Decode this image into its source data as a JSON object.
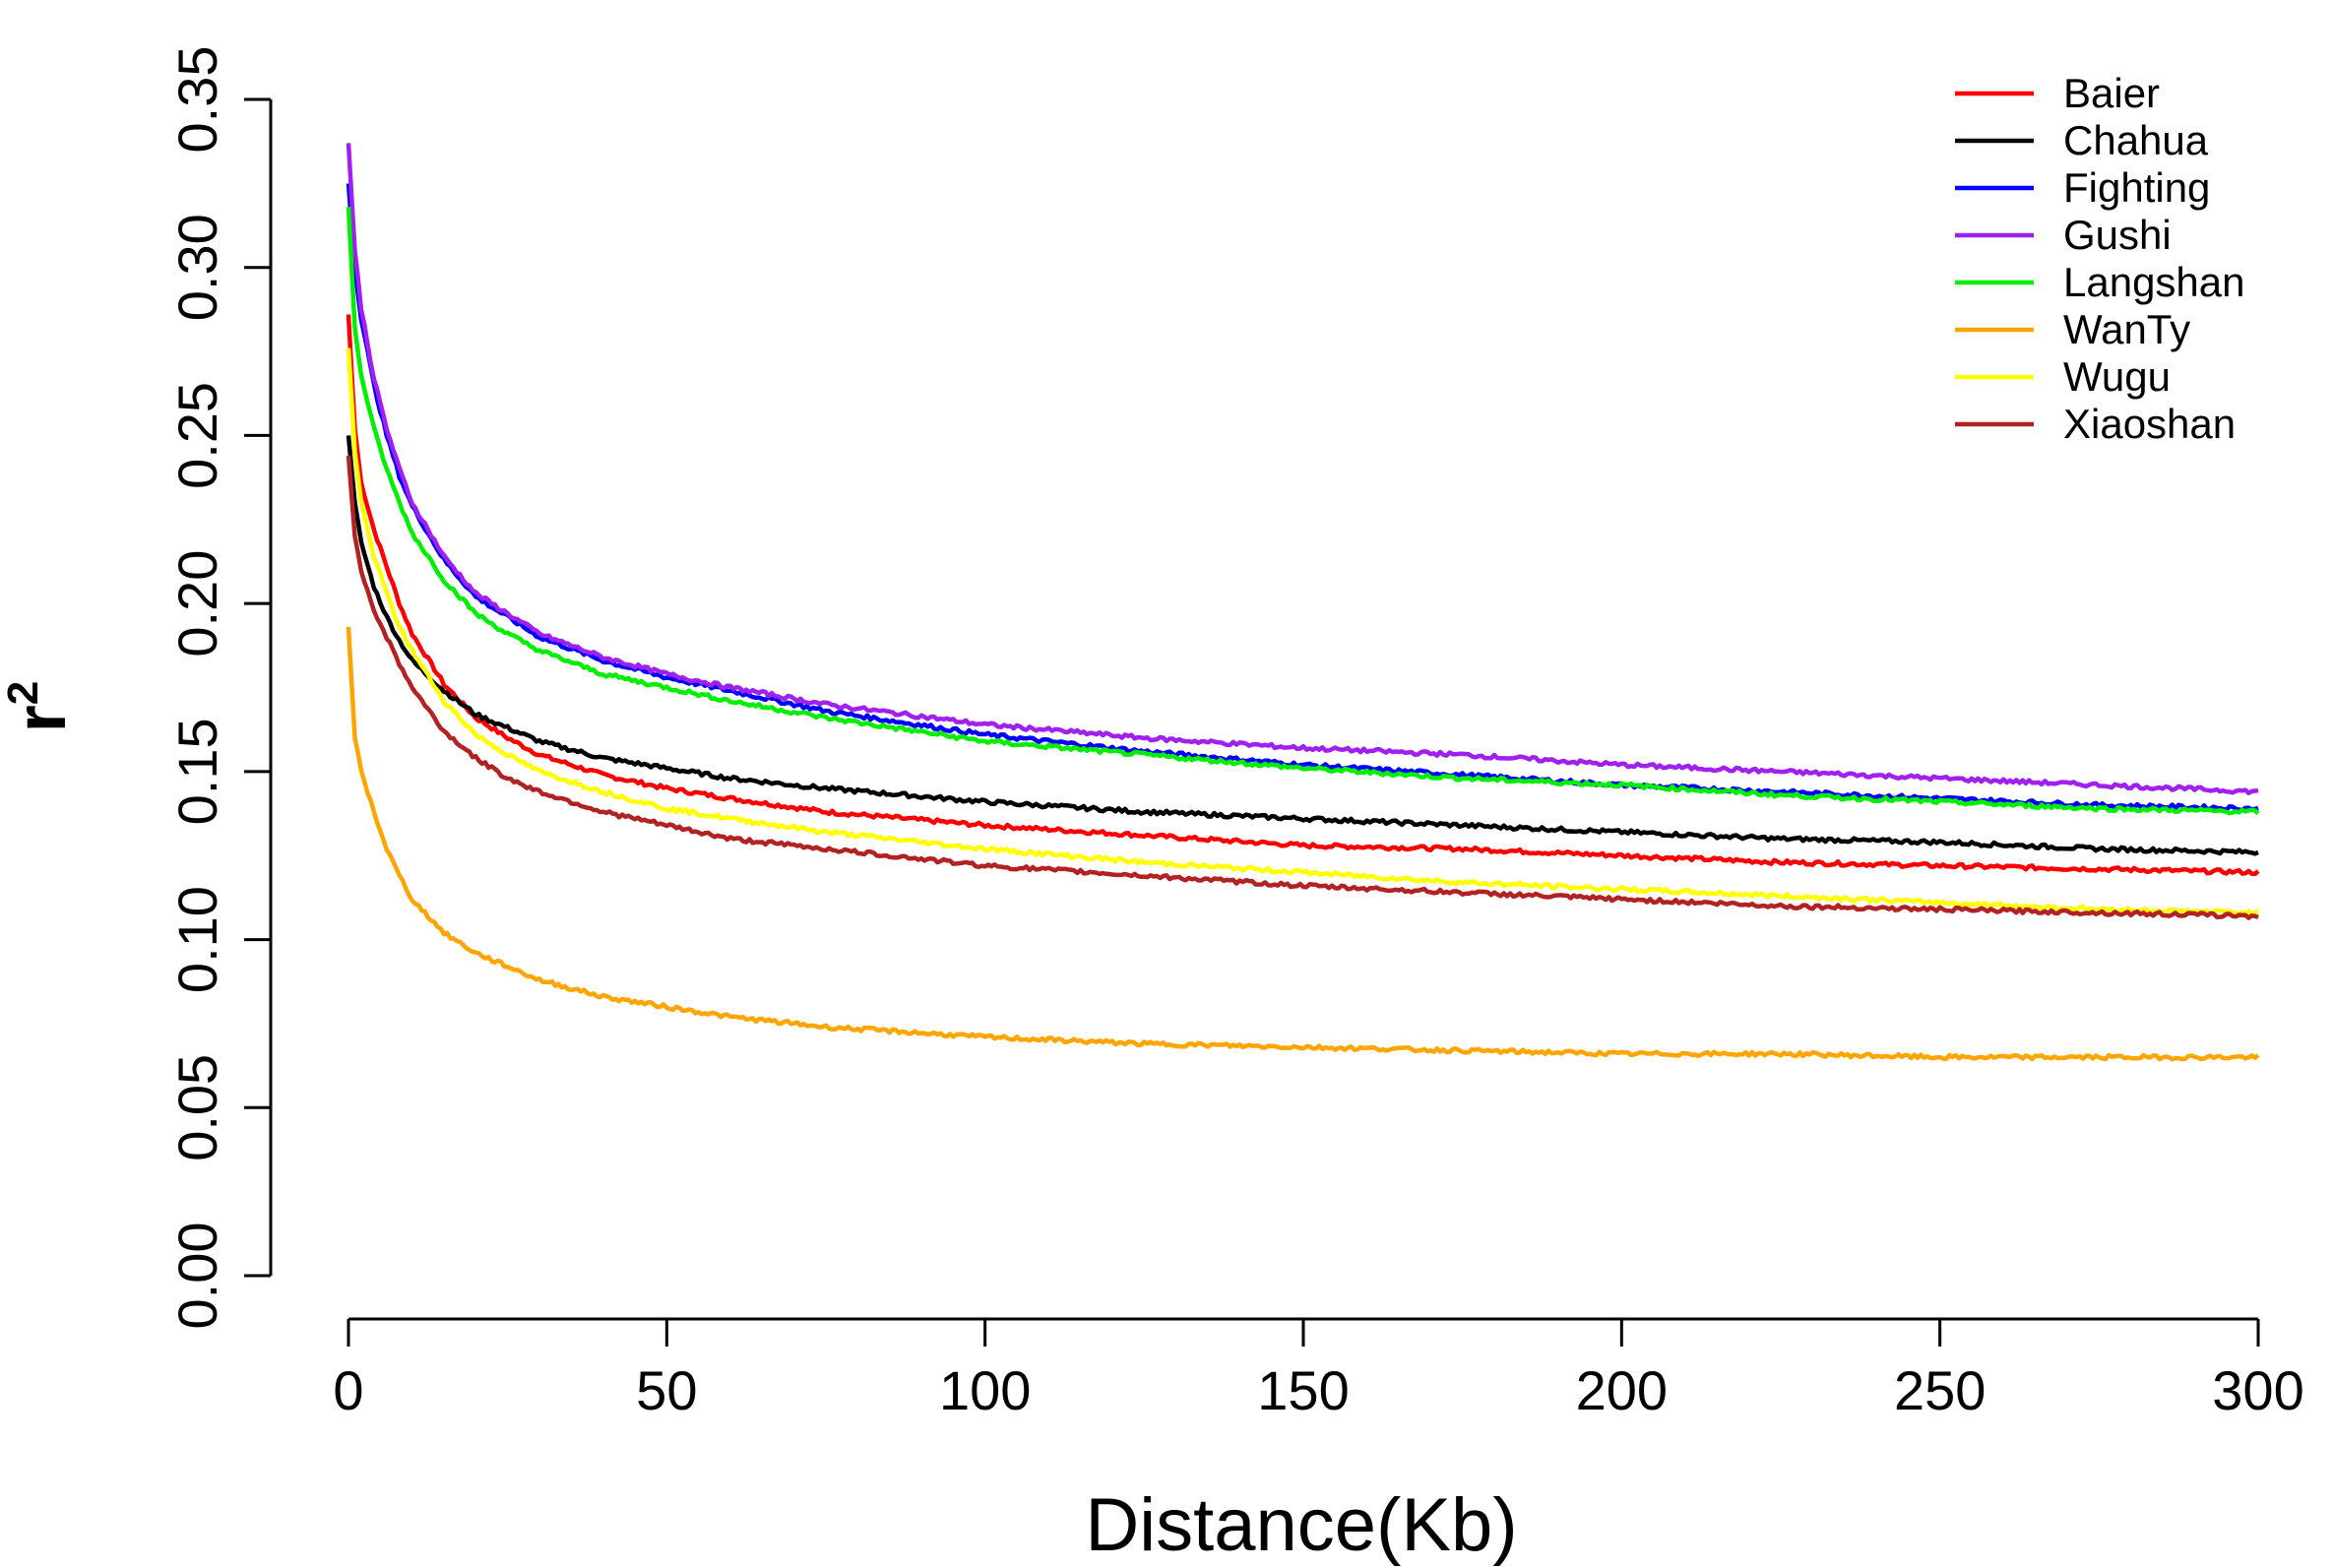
{
  "chart_data": {
    "type": "line",
    "xlabel": "Distance(Kb)",
    "ylabel": "r",
    "ylabel_superscript": "2",
    "xlim": [
      0,
      300
    ],
    "ylim": [
      0,
      0.35
    ],
    "x_ticks": [
      "0",
      "50",
      "100",
      "150",
      "200",
      "250",
      "300"
    ],
    "y_ticks": [
      "0.00",
      "0.05",
      "0.10",
      "0.15",
      "0.20",
      "0.25",
      "0.30",
      "0.35"
    ],
    "grid": false,
    "legend_position": "top-right",
    "x": [
      0,
      1,
      2,
      4,
      6,
      8,
      10,
      15,
      20,
      25,
      30,
      40,
      50,
      60,
      75,
      100,
      125,
      150,
      175,
      200,
      225,
      250,
      275,
      300
    ],
    "series": [
      {
        "name": "Baier",
        "color": "#ff0000",
        "values": [
          0.286,
          0.252,
          0.236,
          0.222,
          0.211,
          0.2,
          0.191,
          0.176,
          0.166,
          0.16,
          0.155,
          0.149,
          0.145,
          0.142,
          0.138,
          0.134,
          0.131,
          0.128,
          0.127,
          0.125,
          0.123,
          0.122,
          0.121,
          0.12
        ]
      },
      {
        "name": "Chahua",
        "color": "#000000",
        "values": [
          0.25,
          0.23,
          0.218,
          0.205,
          0.196,
          0.189,
          0.183,
          0.174,
          0.167,
          0.163,
          0.159,
          0.154,
          0.151,
          0.148,
          0.145,
          0.141,
          0.138,
          0.136,
          0.134,
          0.132,
          0.13,
          0.129,
          0.127,
          0.126
        ]
      },
      {
        "name": "Fighting",
        "color": "#0000ff",
        "values": [
          0.325,
          0.3,
          0.285,
          0.265,
          0.25,
          0.238,
          0.229,
          0.213,
          0.202,
          0.196,
          0.19,
          0.183,
          0.178,
          0.174,
          0.168,
          0.161,
          0.156,
          0.152,
          0.149,
          0.146,
          0.144,
          0.142,
          0.14,
          0.139
        ]
      },
      {
        "name": "Gushi",
        "color": "#a020f0",
        "values": [
          0.337,
          0.305,
          0.288,
          0.267,
          0.252,
          0.24,
          0.23,
          0.214,
          0.203,
          0.197,
          0.191,
          0.184,
          0.179,
          0.175,
          0.17,
          0.164,
          0.16,
          0.157,
          0.155,
          0.152,
          0.15,
          0.148,
          0.146,
          0.144
        ]
      },
      {
        "name": "Langshan",
        "color": "#00ee00",
        "values": [
          0.318,
          0.282,
          0.268,
          0.252,
          0.24,
          0.23,
          0.221,
          0.207,
          0.197,
          0.191,
          0.186,
          0.179,
          0.175,
          0.171,
          0.166,
          0.159,
          0.155,
          0.151,
          0.148,
          0.146,
          0.143,
          0.141,
          0.139,
          0.138
        ]
      },
      {
        "name": "WanTy",
        "color": "#ffa500",
        "values": [
          0.193,
          0.16,
          0.15,
          0.138,
          0.127,
          0.119,
          0.112,
          0.102,
          0.096,
          0.092,
          0.088,
          0.083,
          0.08,
          0.077,
          0.074,
          0.071,
          0.069,
          0.068,
          0.067,
          0.066,
          0.066,
          0.065,
          0.065,
          0.065
        ]
      },
      {
        "name": "Wugu",
        "color": "#ffff00",
        "values": [
          0.276,
          0.245,
          0.23,
          0.214,
          0.203,
          0.193,
          0.186,
          0.171,
          0.161,
          0.155,
          0.15,
          0.144,
          0.139,
          0.136,
          0.132,
          0.127,
          0.123,
          0.12,
          0.117,
          0.115,
          0.113,
          0.111,
          0.109,
          0.108
        ]
      },
      {
        "name": "Xiaoshan",
        "color": "#b22222",
        "values": [
          0.244,
          0.22,
          0.21,
          0.198,
          0.19,
          0.182,
          0.175,
          0.162,
          0.154,
          0.148,
          0.144,
          0.138,
          0.134,
          0.13,
          0.127,
          0.122,
          0.119,
          0.116,
          0.114,
          0.112,
          0.11,
          0.109,
          0.108,
          0.107
        ]
      }
    ]
  }
}
